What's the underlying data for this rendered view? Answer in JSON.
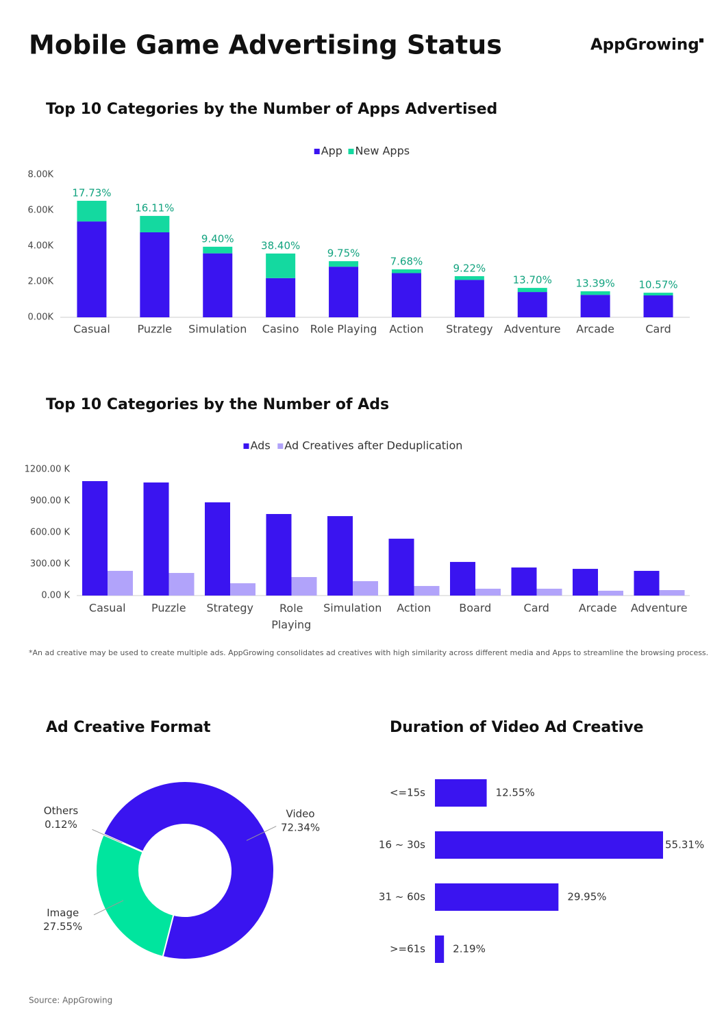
{
  "title": "Mobile Game Advertising Status",
  "logo": "AppGrowing",
  "source": "Source: AppGrowing",
  "chart_data": [
    {
      "type": "stacked_bar",
      "title": "Top 10 Categories by the Number of Apps Advertised",
      "categories": [
        "Casual",
        "Puzzle",
        "Simulation",
        "Casino",
        "Role Playing",
        "Action",
        "Strategy",
        "Adventure",
        "Arcade",
        "Card"
      ],
      "series": [
        {
          "name": "App",
          "color": "#3a14f0",
          "values": [
            5380,
            4770,
            3590,
            2200,
            2840,
            2480,
            2100,
            1420,
            1260,
            1230
          ]
        },
        {
          "name": "New Apps",
          "color": "#14d9a0",
          "values": [
            1160,
            920,
            370,
            1380,
            310,
            210,
            210,
            230,
            200,
            150
          ]
        }
      ],
      "annotations": [
        "17.73%",
        "16.11%",
        "9.40%",
        "38.40%",
        "9.75%",
        "7.68%",
        "9.22%",
        "13.70%",
        "13.39%",
        "10.57%"
      ],
      "ylim": [
        0,
        8000
      ],
      "yticks": [
        {
          "value": 0,
          "label": "0.00K"
        },
        {
          "value": 2000,
          "label": "2.00K"
        },
        {
          "value": 4000,
          "label": "4.00K"
        },
        {
          "value": 6000,
          "label": "6.00K"
        },
        {
          "value": 8000,
          "label": "8.00K"
        }
      ],
      "legend": "top"
    },
    {
      "type": "grouped_bar",
      "title": "Top 10 Categories by the Number of Ads",
      "categories": [
        "Casual",
        "Puzzle",
        "Strategy",
        "Role Playing",
        "Simulation",
        "Action",
        "Board",
        "Card",
        "Arcade",
        "Adventure"
      ],
      "series": [
        {
          "name": "Ads",
          "color": "#3a14f0",
          "values": [
            1089000,
            1076000,
            887000,
            776000,
            756000,
            541000,
            320000,
            267000,
            254000,
            235000
          ]
        },
        {
          "name": "Ad Creatives after Deduplication",
          "color": "#b1a3fa",
          "values": [
            235000,
            215000,
            117000,
            176000,
            137000,
            91000,
            65000,
            65000,
            46000,
            52000
          ]
        }
      ],
      "ylim": [
        0,
        1200000
      ],
      "yticks": [
        {
          "value": 0,
          "label": "0.00 K"
        },
        {
          "value": 300000,
          "label": "300.00 K"
        },
        {
          "value": 600000,
          "label": "600.00 K"
        },
        {
          "value": 900000,
          "label": "900.00 K"
        },
        {
          "value": 1200000,
          "label": "1200.00 K"
        }
      ],
      "legend": "top",
      "note": "*An ad creative may be used to create multiple ads. AppGrowing consolidates ad creatives with high similarity across different media and Apps to streamline the browsing process."
    },
    {
      "type": "donut",
      "title": "Ad Creative Format",
      "categories": [
        "Video",
        "Image",
        "Others"
      ],
      "values": [
        72.34,
        27.55,
        0.12
      ],
      "value_labels": [
        "72.34%",
        "27.55%",
        "0.12%"
      ],
      "colors": [
        "#3a14f0",
        "#00e59e",
        "#c8c8c8"
      ]
    },
    {
      "type": "hbar",
      "title": "Duration of Video Ad Creative",
      "categories": [
        "<=15s",
        "16 ~ 30s",
        "31 ~ 60s",
        ">=61s"
      ],
      "values": [
        12.55,
        55.31,
        29.95,
        2.19
      ],
      "value_labels": [
        "12.55%",
        "55.31%",
        "29.95%",
        "2.19%"
      ],
      "color": "#3a14f0"
    }
  ]
}
